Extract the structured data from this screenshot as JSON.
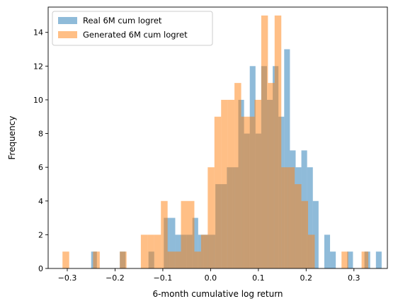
{
  "chart_data": {
    "type": "bar",
    "subtype": "overlapping-histogram",
    "xlabel": "6-month cumulative log return",
    "ylabel": "Frequency",
    "xlim": [
      -0.34,
      0.37
    ],
    "ylim": [
      0,
      15.5
    ],
    "xticks": [
      -0.3,
      -0.2,
      -0.1,
      0.0,
      0.1,
      0.2,
      0.3
    ],
    "xtick_labels": [
      "−0.3",
      "−0.2",
      "−0.1",
      "0.0",
      "0.1",
      "0.2",
      "0.3"
    ],
    "yticks": [
      0,
      2,
      4,
      6,
      8,
      10,
      12,
      14
    ],
    "ytick_labels": [
      "0",
      "2",
      "4",
      "6",
      "8",
      "10",
      "12",
      "14"
    ],
    "grid": false,
    "legend_position": "upper-left",
    "series": [
      {
        "name": "Real 6M cum logret",
        "color": "#1f77b4",
        "opacity": 0.5,
        "bins": [
          {
            "x0": -0.25,
            "x1": -0.238,
            "count": 1
          },
          {
            "x0": -0.19,
            "x1": -0.178,
            "count": 1
          },
          {
            "x0": -0.13,
            "x1": -0.118,
            "count": 1
          },
          {
            "x0": -0.098,
            "x1": -0.086,
            "count": 3
          },
          {
            "x0": -0.086,
            "x1": -0.074,
            "count": 3
          },
          {
            "x0": -0.074,
            "x1": -0.062,
            "count": 2
          },
          {
            "x0": -0.062,
            "x1": -0.05,
            "count": 2
          },
          {
            "x0": -0.05,
            "x1": -0.038,
            "count": 2
          },
          {
            "x0": -0.038,
            "x1": -0.026,
            "count": 3
          },
          {
            "x0": -0.026,
            "x1": -0.014,
            "count": 2
          },
          {
            "x0": -0.014,
            "x1": -0.002,
            "count": 2
          },
          {
            "x0": -0.002,
            "x1": 0.01,
            "count": 2
          },
          {
            "x0": 0.01,
            "x1": 0.022,
            "count": 5
          },
          {
            "x0": 0.022,
            "x1": 0.034,
            "count": 5
          },
          {
            "x0": 0.034,
            "x1": 0.046,
            "count": 6
          },
          {
            "x0": 0.046,
            "x1": 0.058,
            "count": 6
          },
          {
            "x0": 0.058,
            "x1": 0.07,
            "count": 10
          },
          {
            "x0": 0.07,
            "x1": 0.082,
            "count": 8
          },
          {
            "x0": 0.082,
            "x1": 0.094,
            "count": 12
          },
          {
            "x0": 0.094,
            "x1": 0.106,
            "count": 8
          },
          {
            "x0": 0.106,
            "x1": 0.118,
            "count": 12
          },
          {
            "x0": 0.118,
            "x1": 0.13,
            "count": 10
          },
          {
            "x0": 0.13,
            "x1": 0.142,
            "count": 12
          },
          {
            "x0": 0.142,
            "x1": 0.154,
            "count": 9
          },
          {
            "x0": 0.154,
            "x1": 0.166,
            "count": 13
          },
          {
            "x0": 0.166,
            "x1": 0.178,
            "count": 7
          },
          {
            "x0": 0.178,
            "x1": 0.19,
            "count": 6
          },
          {
            "x0": 0.19,
            "x1": 0.202,
            "count": 7
          },
          {
            "x0": 0.202,
            "x1": 0.214,
            "count": 6
          },
          {
            "x0": 0.214,
            "x1": 0.226,
            "count": 4
          },
          {
            "x0": 0.238,
            "x1": 0.25,
            "count": 2
          },
          {
            "x0": 0.25,
            "x1": 0.262,
            "count": 1
          },
          {
            "x0": 0.286,
            "x1": 0.298,
            "count": 1
          },
          {
            "x0": 0.322,
            "x1": 0.334,
            "count": 1
          },
          {
            "x0": 0.346,
            "x1": 0.358,
            "count": 1
          }
        ]
      },
      {
        "name": "Generated 6M cum logret",
        "color": "#ff7f0e",
        "opacity": 0.5,
        "bins": [
          {
            "x0": -0.31,
            "x1": -0.296,
            "count": 1
          },
          {
            "x0": -0.246,
            "x1": -0.232,
            "count": 1
          },
          {
            "x0": -0.19,
            "x1": -0.176,
            "count": 1
          },
          {
            "x0": -0.146,
            "x1": -0.132,
            "count": 2
          },
          {
            "x0": -0.132,
            "x1": -0.118,
            "count": 2
          },
          {
            "x0": -0.118,
            "x1": -0.104,
            "count": 2
          },
          {
            "x0": -0.104,
            "x1": -0.09,
            "count": 4
          },
          {
            "x0": -0.09,
            "x1": -0.076,
            "count": 1
          },
          {
            "x0": -0.076,
            "x1": -0.062,
            "count": 1
          },
          {
            "x0": -0.062,
            "x1": -0.048,
            "count": 4
          },
          {
            "x0": -0.048,
            "x1": -0.034,
            "count": 4
          },
          {
            "x0": -0.034,
            "x1": -0.02,
            "count": 1
          },
          {
            "x0": -0.02,
            "x1": -0.006,
            "count": 2
          },
          {
            "x0": -0.006,
            "x1": 0.008,
            "count": 6
          },
          {
            "x0": 0.008,
            "x1": 0.022,
            "count": 9
          },
          {
            "x0": 0.022,
            "x1": 0.036,
            "count": 10
          },
          {
            "x0": 0.036,
            "x1": 0.05,
            "count": 10
          },
          {
            "x0": 0.05,
            "x1": 0.064,
            "count": 11
          },
          {
            "x0": 0.064,
            "x1": 0.078,
            "count": 9
          },
          {
            "x0": 0.078,
            "x1": 0.092,
            "count": 9
          },
          {
            "x0": 0.092,
            "x1": 0.106,
            "count": 10
          },
          {
            "x0": 0.106,
            "x1": 0.12,
            "count": 15
          },
          {
            "x0": 0.12,
            "x1": 0.134,
            "count": 11
          },
          {
            "x0": 0.134,
            "x1": 0.148,
            "count": 15
          },
          {
            "x0": 0.148,
            "x1": 0.162,
            "count": 6
          },
          {
            "x0": 0.162,
            "x1": 0.176,
            "count": 6
          },
          {
            "x0": 0.176,
            "x1": 0.19,
            "count": 5
          },
          {
            "x0": 0.19,
            "x1": 0.204,
            "count": 4
          },
          {
            "x0": 0.204,
            "x1": 0.218,
            "count": 2
          },
          {
            "x0": 0.274,
            "x1": 0.288,
            "count": 1
          },
          {
            "x0": 0.316,
            "x1": 0.33,
            "count": 1
          }
        ]
      }
    ]
  }
}
